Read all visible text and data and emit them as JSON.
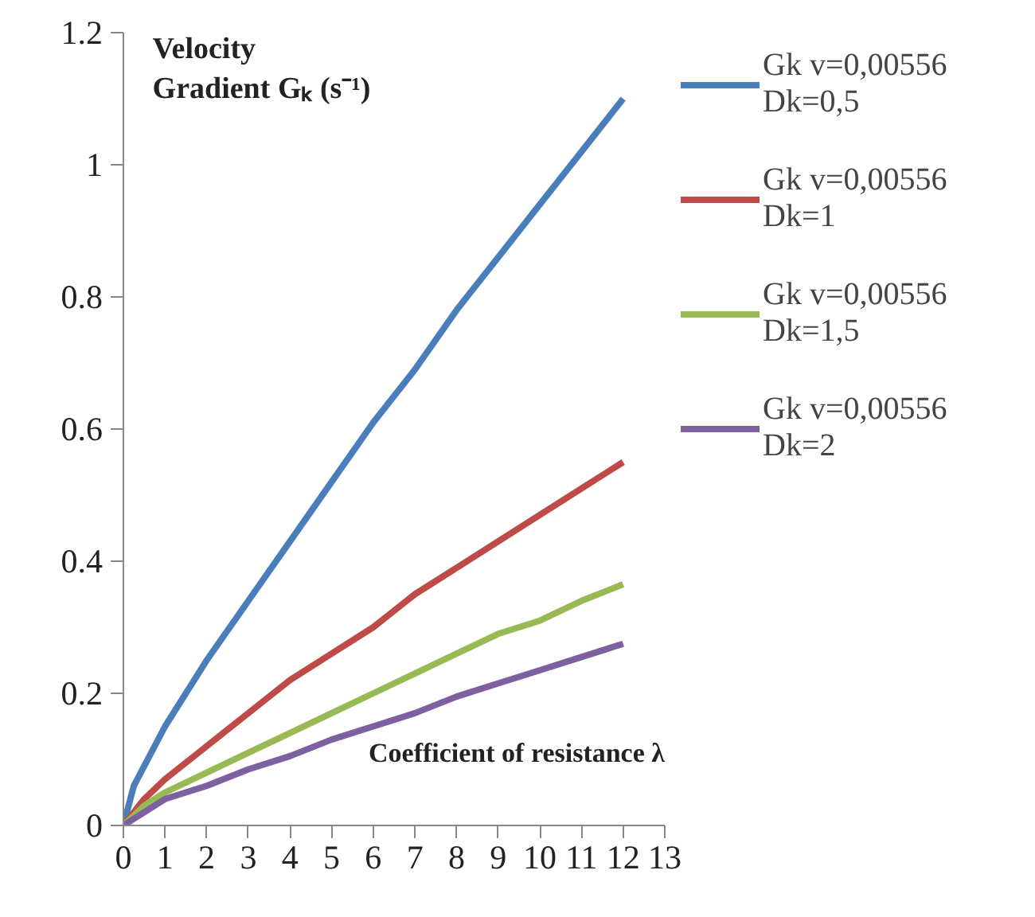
{
  "chart_data": {
    "type": "line",
    "xlabel": "Coefficient of resistance λ",
    "ylabel": "Velocity Gradient Gₖ (s⁻¹)",
    "x": [
      0,
      0.25,
      0.5,
      1,
      2,
      3,
      4,
      5,
      6,
      7,
      8,
      9,
      10,
      11,
      12
    ],
    "series": [
      {
        "name": "Gk v=0,00556 Dk=0,5",
        "color": "#4a7ebb",
        "values": [
          0,
          0.06,
          0.09,
          0.15,
          0.25,
          0.34,
          0.43,
          0.52,
          0.61,
          0.69,
          0.78,
          0.86,
          0.94,
          1.02,
          1.1
        ]
      },
      {
        "name": "Gk v=0,00556 Dk=1",
        "color": "#be4b48",
        "values": [
          0,
          0.02,
          0.04,
          0.07,
          0.12,
          0.17,
          0.22,
          0.26,
          0.3,
          0.35,
          0.39,
          0.43,
          0.47,
          0.51,
          0.55
        ]
      },
      {
        "name": "Gk v=0,00556 Dk=1,5",
        "color": "#98b954",
        "values": [
          0,
          0.015,
          0.03,
          0.05,
          0.08,
          0.11,
          0.14,
          0.17,
          0.2,
          0.23,
          0.26,
          0.29,
          0.31,
          0.34,
          0.365
        ]
      },
      {
        "name": "Gk v=0,00556 Dk=2",
        "color": "#7d60a0",
        "values": [
          0,
          0.01,
          0.02,
          0.04,
          0.06,
          0.085,
          0.105,
          0.13,
          0.15,
          0.17,
          0.195,
          0.215,
          0.235,
          0.255,
          0.275
        ]
      }
    ],
    "xlim": [
      0,
      13
    ],
    "xticks": [
      0,
      1,
      2,
      3,
      4,
      5,
      6,
      7,
      8,
      9,
      10,
      11,
      12,
      13
    ],
    "ylim": [
      0,
      1.2
    ],
    "yticks": [
      0,
      0.2,
      0.4,
      0.6,
      0.8,
      1,
      1.2
    ],
    "grid": false,
    "legend": "right",
    "marker": "none",
    "line_style": "solid"
  }
}
